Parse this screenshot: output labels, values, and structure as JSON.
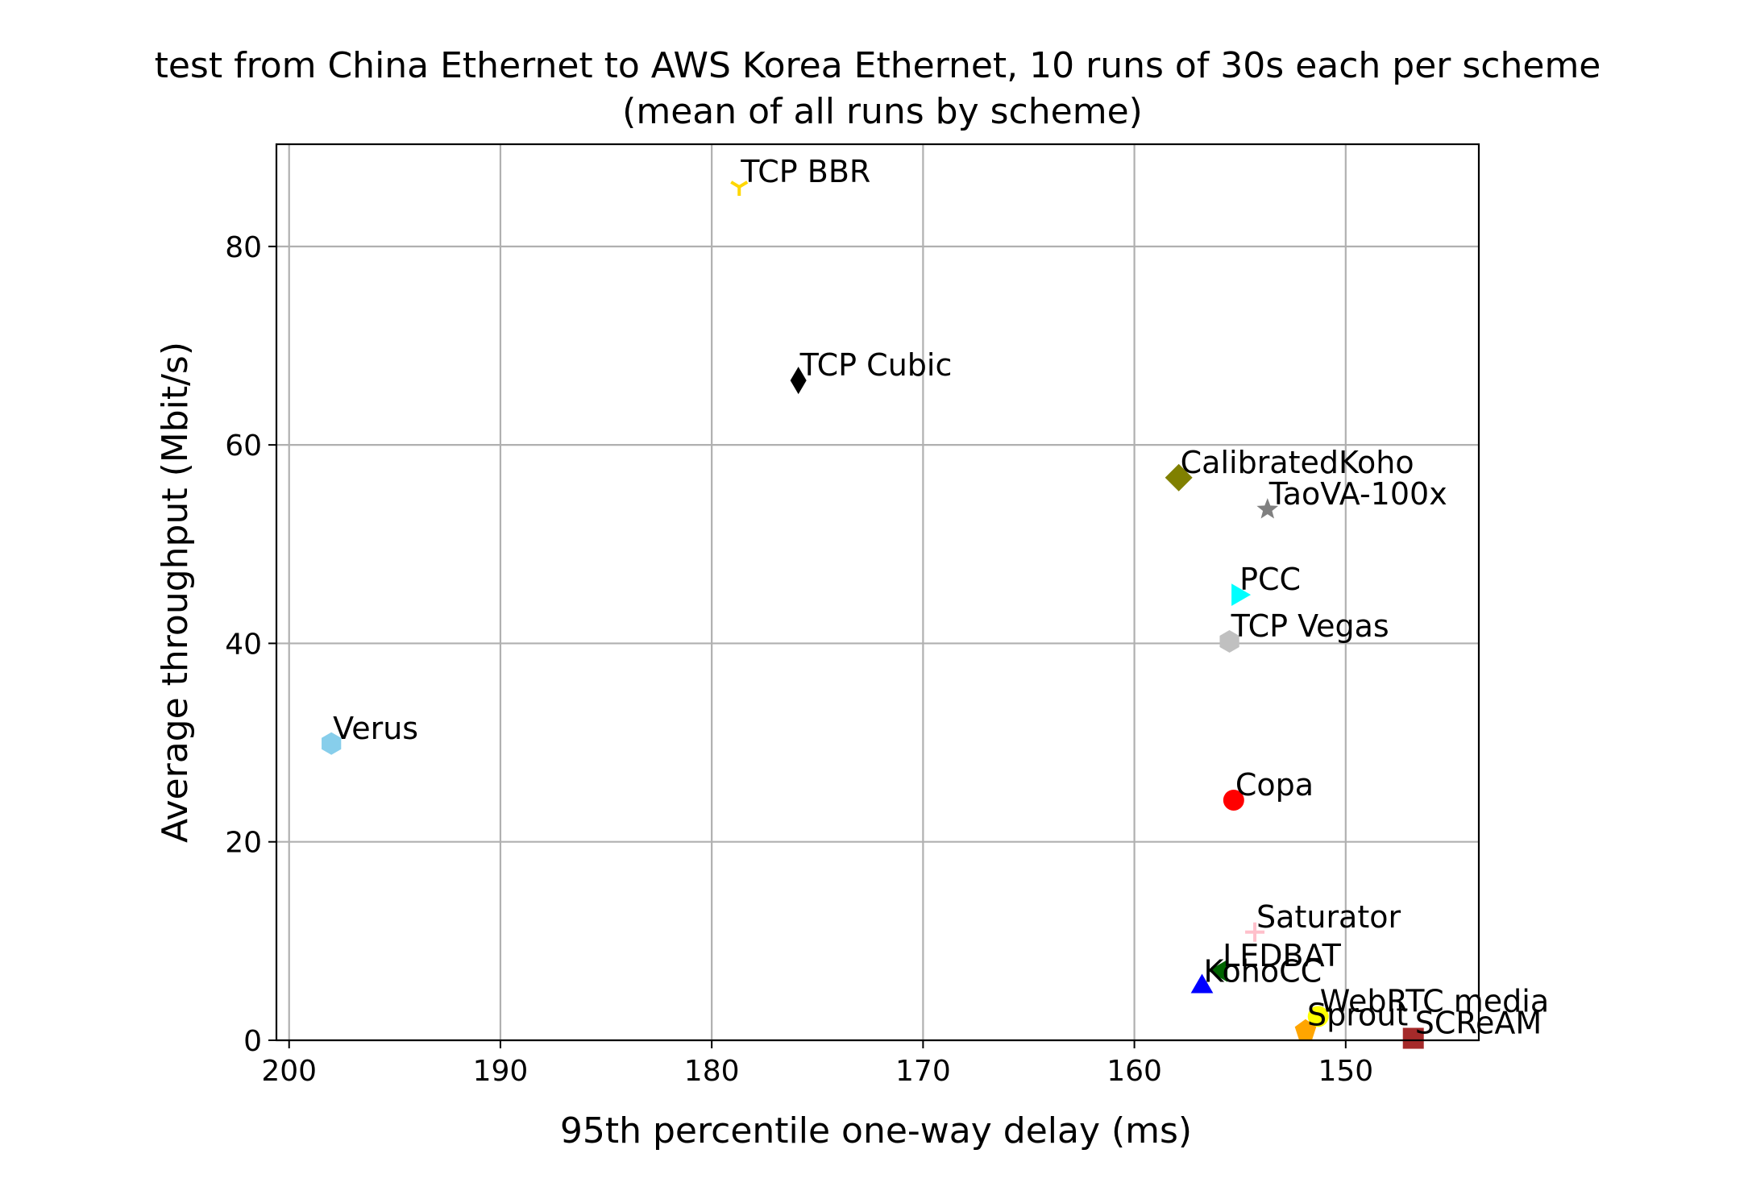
{
  "chart_data": {
    "type": "scatter",
    "title": "test from China Ethernet to AWS Korea Ethernet, 10 runs of 30s each per scheme",
    "subtitle": "(mean of all runs by scheme)",
    "xlabel": "95th percentile one-way delay (ms)",
    "ylabel": "Average throughput (Mbit/s)",
    "x_inverted": true,
    "xlim": [
      200.6,
      143.7
    ],
    "ylim": [
      0,
      90.3
    ],
    "x_ticks": [
      200,
      190,
      180,
      170,
      160,
      150
    ],
    "y_ticks": [
      0,
      20,
      40,
      60,
      80
    ],
    "grid": true,
    "legend": "none",
    "points": [
      {
        "label": "TCP BBR",
        "x": 178.7,
        "y": 86.0,
        "color": "#ffd700",
        "marker": "tri-down"
      },
      {
        "label": "TCP Cubic",
        "x": 175.9,
        "y": 66.5,
        "color": "#000000",
        "marker": "thin-diamond"
      },
      {
        "label": "CalibratedKoho",
        "x": 157.9,
        "y": 56.7,
        "color": "#808000",
        "marker": "diamond"
      },
      {
        "label": "TaoVA-100x",
        "x": 153.7,
        "y": 53.5,
        "color": "#808080",
        "marker": "star"
      },
      {
        "label": "PCC",
        "x": 155.1,
        "y": 44.9,
        "color": "#00ffff",
        "marker": "triangle-right"
      },
      {
        "label": "TCP Vegas",
        "x": 155.5,
        "y": 40.2,
        "color": "#c0c0c0",
        "marker": "hexagon"
      },
      {
        "label": "Verus",
        "x": 198.0,
        "y": 29.9,
        "color": "#87ceeb",
        "marker": "hexagon"
      },
      {
        "label": "Copa",
        "x": 155.3,
        "y": 24.2,
        "color": "#ff0000",
        "marker": "circle"
      },
      {
        "label": "Saturator",
        "x": 154.3,
        "y": 10.9,
        "color": "#ffc0cb",
        "marker": "plus"
      },
      {
        "label": "LEDBAT",
        "x": 155.9,
        "y": 7.0,
        "color": "#006400",
        "marker": "triangle-left"
      },
      {
        "label": "KohoCC",
        "x": 156.8,
        "y": 5.4,
        "color": "#0000ff",
        "marker": "triangle-up"
      },
      {
        "label": "WebRTC media",
        "x": 151.3,
        "y": 2.4,
        "color": "#ffff00",
        "marker": "circle"
      },
      {
        "label": "Sprout",
        "x": 151.9,
        "y": 1.0,
        "color": "#ffa500",
        "marker": "pentagon"
      },
      {
        "label": "SCReAM",
        "x": 146.8,
        "y": 0.2,
        "color": "#a52a2a",
        "marker": "square"
      }
    ]
  }
}
